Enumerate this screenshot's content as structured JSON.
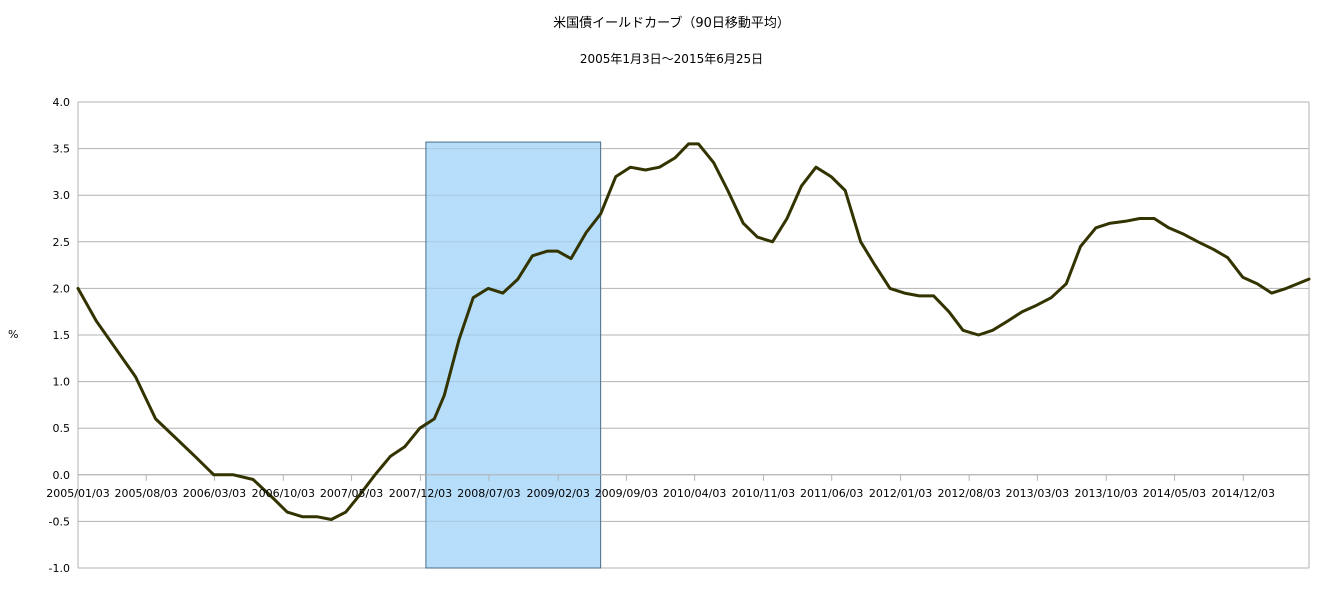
{
  "chart_data": {
    "type": "line",
    "title": "米国債イールドカーブ（90日移動平均）",
    "subtitle": "2005年1月3日～2015年6月25日",
    "xlabel": "",
    "ylabel": "%",
    "ylim": [
      -1.0,
      4.0
    ],
    "xlim": [
      "2005-01-03",
      "2015-06-25"
    ],
    "yticks": [
      "4.0",
      "3.5",
      "3.0",
      "2.5",
      "2.0",
      "1.5",
      "1.0",
      "0.5",
      "0.0",
      "-0.5",
      "-1.0"
    ],
    "xticks": [
      "2005/01/03",
      "2005/08/03",
      "2006/03/03",
      "2006/10/03",
      "2007/05/03",
      "2007/12/03",
      "2008/07/03",
      "2009/02/03",
      "2009/09/03",
      "2010/04/03",
      "2010/11/03",
      "2011/06/03",
      "2012/01/03",
      "2012/08/03",
      "2013/03/03",
      "2013/10/03",
      "2014/05/03",
      "2014/12/03"
    ],
    "grid": true,
    "line_color": "#333300",
    "highlight": {
      "start": "2007-12-20",
      "end": "2009-06-15",
      "ymin": -1.0,
      "ymax": 3.57,
      "color": "#9dd2f7"
    },
    "series": [
      {
        "x": [
          "2005-01-03",
          "2005-03-01",
          "2005-05-01",
          "2005-07-01",
          "2005-09-01",
          "2005-11-01",
          "2006-01-01",
          "2006-03-01",
          "2006-05-01",
          "2006-07-01",
          "2006-09-01",
          "2006-10-15",
          "2006-12-01",
          "2007-01-15",
          "2007-03-01",
          "2007-04-15",
          "2007-06-01",
          "2007-07-15",
          "2007-09-01",
          "2007-10-15",
          "2007-12-01",
          "2008-01-15",
          "2008-02-15",
          "2008-04-01",
          "2008-05-15",
          "2008-07-01",
          "2008-08-15",
          "2008-10-01",
          "2008-11-15",
          "2009-01-01",
          "2009-02-01",
          "2009-03-15",
          "2009-05-01",
          "2009-06-15",
          "2009-08-01",
          "2009-09-15",
          "2009-11-01",
          "2009-12-15",
          "2010-02-01",
          "2010-03-15",
          "2010-04-15",
          "2010-06-01",
          "2010-07-15",
          "2010-09-01",
          "2010-10-15",
          "2010-12-01",
          "2011-01-15",
          "2011-03-01",
          "2011-04-15",
          "2011-06-01",
          "2011-07-15",
          "2011-09-01",
          "2011-10-15",
          "2011-12-01",
          "2012-01-15",
          "2012-03-01",
          "2012-04-15",
          "2012-06-01",
          "2012-07-15",
          "2012-09-01",
          "2012-10-15",
          "2012-12-01",
          "2013-01-15",
          "2013-03-01",
          "2013-04-15",
          "2013-06-01",
          "2013-07-15",
          "2013-09-01",
          "2013-10-15",
          "2013-12-01",
          "2014-01-15",
          "2014-03-01",
          "2014-04-15",
          "2014-06-01",
          "2014-07-15",
          "2014-09-01",
          "2014-10-15",
          "2014-12-01",
          "2015-01-15",
          "2015-03-01",
          "2015-04-15",
          "2015-06-25"
        ],
        "values": [
          2.0,
          1.65,
          1.35,
          1.05,
          0.6,
          0.4,
          0.2,
          0.0,
          0.0,
          -0.05,
          -0.25,
          -0.4,
          -0.45,
          -0.45,
          -0.48,
          -0.4,
          -0.2,
          0.0,
          0.2,
          0.3,
          0.5,
          0.6,
          0.85,
          1.45,
          1.9,
          2.0,
          1.95,
          2.1,
          2.35,
          2.4,
          2.4,
          2.32,
          2.6,
          2.8,
          3.2,
          3.3,
          3.27,
          3.3,
          3.4,
          3.55,
          3.55,
          3.35,
          3.05,
          2.7,
          2.55,
          2.5,
          2.75,
          3.1,
          3.3,
          3.2,
          3.05,
          2.5,
          2.25,
          2.0,
          1.95,
          1.92,
          1.92,
          1.75,
          1.55,
          1.5,
          1.55,
          1.65,
          1.75,
          1.82,
          1.9,
          2.05,
          2.45,
          2.65,
          2.7,
          2.72,
          2.75,
          2.75,
          2.65,
          2.58,
          2.5,
          2.42,
          2.33,
          2.12,
          2.05,
          1.95,
          2.0,
          2.1
        ]
      }
    ]
  }
}
